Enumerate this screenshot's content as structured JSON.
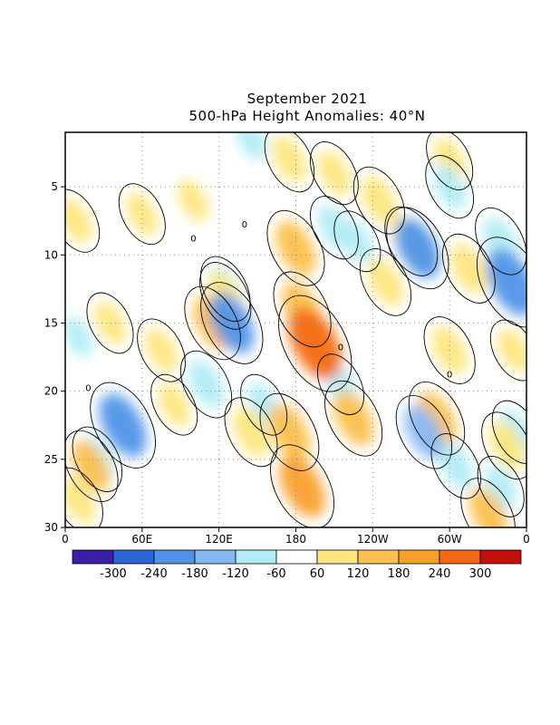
{
  "chart_data": {
    "type": "heatmap",
    "title": "September 2021",
    "subtitle": "500-hPa Height Anomalies: 40°N",
    "x_ticks": [
      {
        "lon": 0,
        "label": "0"
      },
      {
        "lon": 60,
        "label": "60E"
      },
      {
        "lon": 120,
        "label": "120E"
      },
      {
        "lon": 180,
        "label": "180"
      },
      {
        "lon": 240,
        "label": "120W"
      },
      {
        "lon": 300,
        "label": "60W"
      },
      {
        "lon": 360,
        "label": "0"
      }
    ],
    "xlim": [
      0,
      360
    ],
    "ylim": [
      1,
      30
    ],
    "y_reversed": true,
    "y_ticks": [
      {
        "day": 5,
        "label": "5"
      },
      {
        "day": 10,
        "label": "10"
      },
      {
        "day": 15,
        "label": "15"
      },
      {
        "day": 20,
        "label": "20"
      },
      {
        "day": 25,
        "label": "25"
      },
      {
        "day": 30,
        "label": "30"
      }
    ],
    "grid": true,
    "contour_label": "0",
    "colorbar": {
      "labels": [
        "-300",
        "-240",
        "-180",
        "-120",
        "-60",
        "60",
        "120",
        "180",
        "240",
        "300"
      ],
      "colors": [
        "#3a1fa8",
        "#2a68d8",
        "#4f93e8",
        "#86b8f2",
        "#b2ecf4",
        "#ffffff",
        "#fde67f",
        "#fbc04e",
        "#f9a02c",
        "#f46a12",
        "#c4100a"
      ]
    },
    "anomaly_features": [
      {
        "lon": 8,
        "day": 7.5,
        "value": 90
      },
      {
        "lon": 60,
        "day": 7,
        "value": 80
      },
      {
        "lon": 100,
        "day": 6,
        "value": 70
      },
      {
        "lon": 175,
        "day": 3,
        "value": 100
      },
      {
        "lon": 210,
        "day": 4,
        "value": 90
      },
      {
        "lon": 245,
        "day": 6,
        "value": 110
      },
      {
        "lon": 300,
        "day": 3,
        "value": 80
      },
      {
        "lon": 180,
        "day": 9.5,
        "value": 150
      },
      {
        "lon": 195,
        "day": 16.5,
        "value": 250
      },
      {
        "lon": 185,
        "day": 14,
        "value": 150
      },
      {
        "lon": 115,
        "day": 15,
        "value": 140
      },
      {
        "lon": 125,
        "day": 13,
        "value": 110
      },
      {
        "lon": 35,
        "day": 15,
        "value": 80
      },
      {
        "lon": 75,
        "day": 17,
        "value": 90
      },
      {
        "lon": 250,
        "day": 12,
        "value": 110
      },
      {
        "lon": 270,
        "day": 9,
        "value": 120
      },
      {
        "lon": 315,
        "day": 11,
        "value": 120
      },
      {
        "lon": 300,
        "day": 17,
        "value": 110
      },
      {
        "lon": 350,
        "day": 17,
        "value": 80
      },
      {
        "lon": 175,
        "day": 23,
        "value": 160
      },
      {
        "lon": 185,
        "day": 27,
        "value": 190
      },
      {
        "lon": 145,
        "day": 23,
        "value": 120
      },
      {
        "lon": 225,
        "day": 22,
        "value": 150
      },
      {
        "lon": 290,
        "day": 22,
        "value": 140
      },
      {
        "lon": 345,
        "day": 24,
        "value": 110
      },
      {
        "lon": 330,
        "day": 29,
        "value": 130
      },
      {
        "lon": 20,
        "day": 25.5,
        "value": 130
      },
      {
        "lon": 10,
        "day": 28,
        "value": 100
      },
      {
        "lon": 85,
        "day": 21,
        "value": 80
      },
      {
        "lon": 45,
        "day": 22.5,
        "value": -200
      },
      {
        "lon": 25,
        "day": 25,
        "value": -100
      },
      {
        "lon": 130,
        "day": 15,
        "value": -180
      },
      {
        "lon": 125,
        "day": 12.5,
        "value": -100
      },
      {
        "lon": 210,
        "day": 8,
        "value": -90
      },
      {
        "lon": 228,
        "day": 9,
        "value": -80
      },
      {
        "lon": 275,
        "day": 9.5,
        "value": -180
      },
      {
        "lon": 348,
        "day": 12,
        "value": -220
      },
      {
        "lon": 340,
        "day": 9,
        "value": -110
      },
      {
        "lon": 300,
        "day": 5,
        "value": -90
      },
      {
        "lon": 145,
        "day": 1.5,
        "value": -70
      },
      {
        "lon": 110,
        "day": 19.5,
        "value": -110
      },
      {
        "lon": 155,
        "day": 21,
        "value": -80
      },
      {
        "lon": 215,
        "day": 19.5,
        "value": -80
      },
      {
        "lon": 280,
        "day": 23,
        "value": -140
      },
      {
        "lon": 305,
        "day": 25.5,
        "value": -100
      },
      {
        "lon": 340,
        "day": 27,
        "value": -80
      },
      {
        "lon": 352,
        "day": 23,
        "value": -90
      },
      {
        "lon": 10,
        "day": 16,
        "value": -60
      }
    ]
  }
}
